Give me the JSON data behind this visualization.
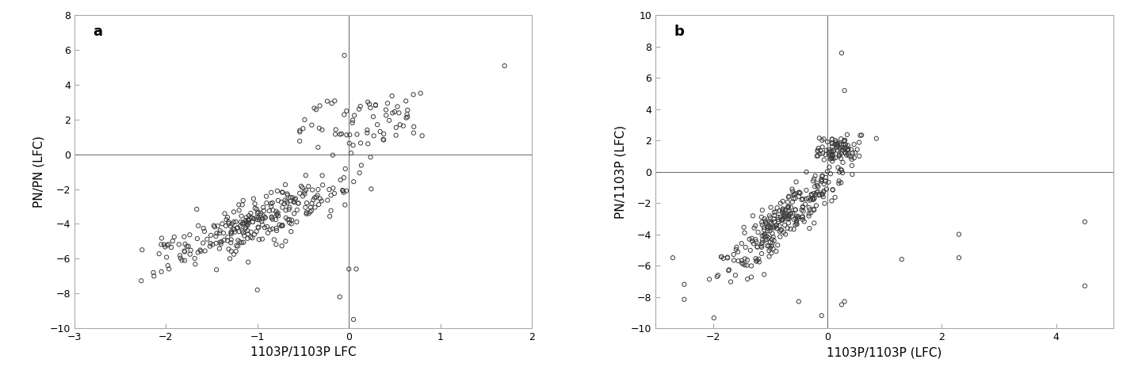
{
  "panel_a": {
    "label": "a",
    "xlabel": "1103P/1103P LFC",
    "ylabel": "PN/PN (LFC)",
    "xlim": [
      -3,
      2
    ],
    "ylim": [
      -10,
      8
    ],
    "xticks": [
      -3,
      -2,
      -1,
      0,
      1,
      2
    ],
    "yticks": [
      -10,
      -8,
      -6,
      -4,
      -2,
      0,
      2,
      4,
      6,
      8
    ]
  },
  "panel_b": {
    "label": "b",
    "xlabel": "1103P/1103P (LFC)",
    "ylabel": "PN/1103P (LFC)",
    "xlim": [
      -3,
      5
    ],
    "ylim": [
      -10,
      10
    ],
    "xticks": [
      -2,
      0,
      2,
      4
    ],
    "yticks": [
      -10,
      -8,
      -6,
      -4,
      -2,
      0,
      2,
      4,
      6,
      8,
      10
    ]
  },
  "marker_size": 14,
  "marker_color": "none",
  "marker_edge_color": "#3a3a3a",
  "marker_edge_width": 0.7,
  "marker_style": "o",
  "fig_bg": "#ffffff",
  "spine_color": "#aaaaaa",
  "axis_linewidth": 0.8,
  "crosshair_linewidth": 0.7,
  "crosshair_color": "#666666",
  "label_fontsize": 11,
  "tick_fontsize": 9,
  "panel_label_fontsize": 13
}
